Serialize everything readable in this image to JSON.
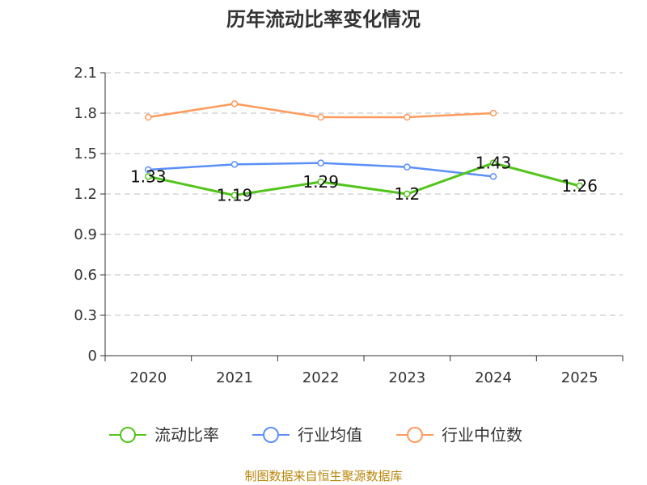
{
  "chart_data": {
    "type": "line",
    "title": "历年流动比率变化情况",
    "categories": [
      "2020",
      "2021",
      "2022",
      "2023",
      "2024",
      "2025"
    ],
    "ylim": [
      0,
      2.1
    ],
    "yticks": [
      0,
      0.3,
      0.6,
      0.9,
      1.2,
      1.5,
      1.8,
      2.1
    ],
    "ytick_labels": [
      "0",
      "0.3",
      "0.6",
      "0.9",
      "1.2",
      "1.5",
      "1.8",
      "2.1"
    ],
    "grid": true,
    "legend_position": "bottom",
    "series": [
      {
        "name": "流动比率",
        "color": "#52c41a",
        "values": [
          1.33,
          1.19,
          1.29,
          1.2,
          1.43,
          1.26
        ],
        "labels": [
          "1.33",
          "1.19",
          "1.29",
          "1.2",
          "1.43",
          "1.26"
        ],
        "show_labels": true
      },
      {
        "name": "行业均值",
        "color": "#5b8ff9",
        "values": [
          1.38,
          1.42,
          1.43,
          1.4,
          1.33,
          null
        ],
        "show_labels": false
      },
      {
        "name": "行业中位数",
        "color": "#ff9a5c",
        "values": [
          1.77,
          1.87,
          1.77,
          1.77,
          1.8,
          null
        ],
        "show_labels": false
      }
    ]
  },
  "source_text": "制图数据来自恒生聚源数据库"
}
